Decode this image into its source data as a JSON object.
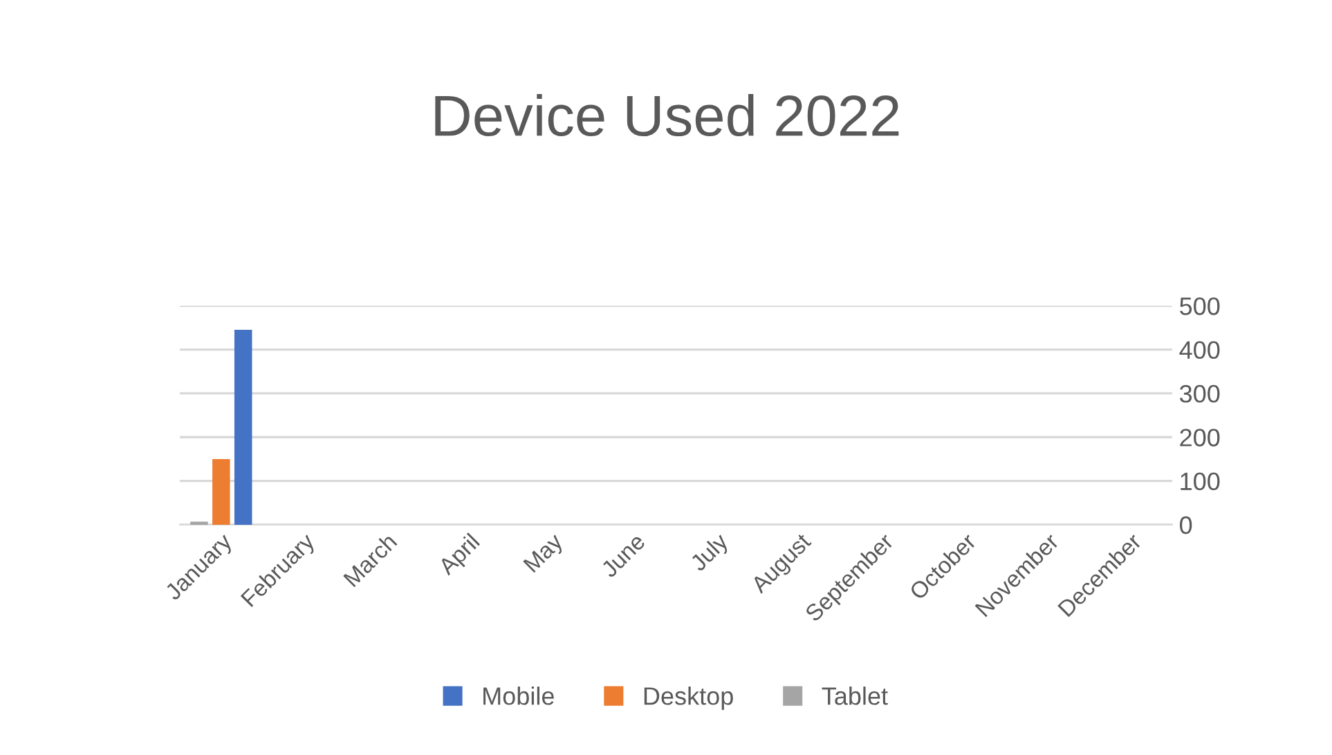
{
  "chart_data": {
    "type": "bar",
    "title": "Device Used 2022",
    "categories": [
      "January",
      "February",
      "March",
      "April",
      "May",
      "June",
      "July",
      "August",
      "September",
      "October",
      "November",
      "December"
    ],
    "series": [
      {
        "name": "Mobile",
        "color": "#4472c4",
        "values": [
          445,
          null,
          null,
          null,
          null,
          null,
          null,
          null,
          null,
          null,
          null,
          null
        ]
      },
      {
        "name": "Desktop",
        "color": "#ed7d31",
        "values": [
          150,
          null,
          null,
          null,
          null,
          null,
          null,
          null,
          null,
          null,
          null,
          null
        ]
      },
      {
        "name": "Tablet",
        "color": "#a5a5a5",
        "values": [
          7,
          null,
          null,
          null,
          null,
          null,
          null,
          null,
          null,
          null,
          null,
          null
        ]
      }
    ],
    "ylim": [
      0,
      500
    ],
    "yticks": [
      0,
      100,
      200,
      300,
      400,
      500
    ],
    "grid": "y",
    "legend": "bottom"
  }
}
